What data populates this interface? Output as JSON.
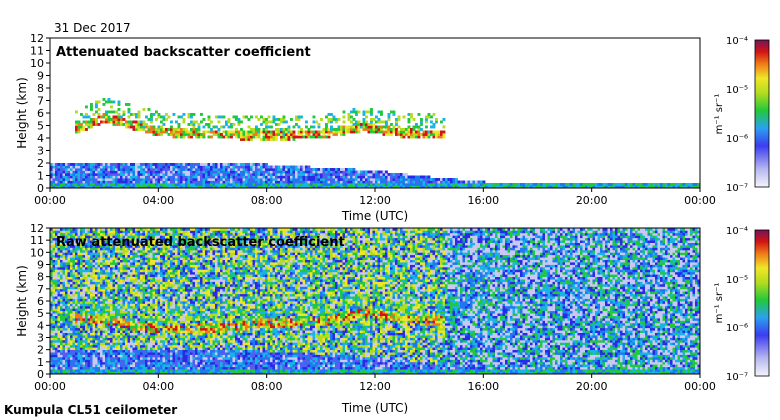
{
  "figure": {
    "date": "31 Dec 2017",
    "footer": "Kumpula CL51 ceilometer"
  },
  "chart_data": [
    {
      "type": "heatmap",
      "title": "Attenuated backscatter coefficient",
      "xlabel": "Time (UTC)",
      "ylabel": "Height (km)",
      "xlim": [
        0,
        24
      ],
      "ylim": [
        0,
        12
      ],
      "xticks": [
        "00:00",
        "04:00",
        "08:00",
        "12:00",
        "16:00",
        "20:00",
        "00:00"
      ],
      "yticks": [
        "0",
        "1",
        "2",
        "3",
        "4",
        "5",
        "6",
        "7",
        "8",
        "9",
        "10",
        "11",
        "12"
      ],
      "colorbar": {
        "scale": "log",
        "range": [
          1e-07,
          0.0001
        ],
        "unit": "m⁻¹ sr⁻¹",
        "tick_labels": [
          "10⁻⁴",
          "10⁻⁵",
          "10⁻⁶",
          "10⁻⁷"
        ]
      },
      "features": {
        "cloud_layer_km": [
          [
            1.0,
            4.7
          ],
          [
            2.0,
            5.5
          ],
          [
            4.0,
            4.4
          ],
          [
            6.0,
            4.2
          ],
          [
            8.0,
            4.1
          ],
          [
            10.0,
            4.2
          ],
          [
            11.5,
            4.8
          ],
          [
            13.0,
            4.3
          ],
          [
            14.2,
            4.2
          ]
        ],
        "boundary_layer_top_km": [
          [
            0,
            2.0
          ],
          [
            4,
            2.0
          ],
          [
            8,
            1.8
          ],
          [
            12,
            1.3
          ],
          [
            13.5,
            0.9
          ],
          [
            16,
            0.4
          ],
          [
            24,
            0.4
          ]
        ],
        "noise_level": "low"
      }
    },
    {
      "type": "heatmap",
      "title": "Raw attenuated backscatter coefficient",
      "xlabel": "Time (UTC)",
      "ylabel": "Height (km)",
      "xlim": [
        0,
        24
      ],
      "ylim": [
        0,
        12
      ],
      "xticks": [
        "00:00",
        "04:00",
        "08:00",
        "12:00",
        "16:00",
        "20:00",
        "00:00"
      ],
      "yticks": [
        "0",
        "1",
        "2",
        "3",
        "4",
        "5",
        "6",
        "7",
        "8",
        "9",
        "10",
        "11",
        "12"
      ],
      "colorbar": {
        "scale": "log",
        "range": [
          1e-07,
          0.0001
        ],
        "unit": "m⁻¹ sr⁻¹",
        "tick_labels": [
          "10⁻⁴",
          "10⁻⁵",
          "10⁻⁶",
          "10⁻⁷"
        ]
      },
      "features": {
        "cloud_layer_km": [
          [
            1.0,
            4.5
          ],
          [
            2.0,
            4.3
          ],
          [
            4.0,
            3.6
          ],
          [
            6.0,
            3.7
          ],
          [
            8.0,
            4.1
          ],
          [
            10.0,
            4.2
          ],
          [
            11.5,
            5.0
          ],
          [
            13.0,
            4.4
          ],
          [
            14.2,
            4.3
          ]
        ],
        "boundary_layer_top_km": [
          [
            0,
            2.0
          ],
          [
            4,
            1.9
          ],
          [
            8,
            1.8
          ],
          [
            12,
            1.3
          ],
          [
            13.5,
            0.9
          ],
          [
            16,
            0.4
          ],
          [
            24,
            0.4
          ]
        ],
        "noise_level": "high"
      }
    }
  ]
}
